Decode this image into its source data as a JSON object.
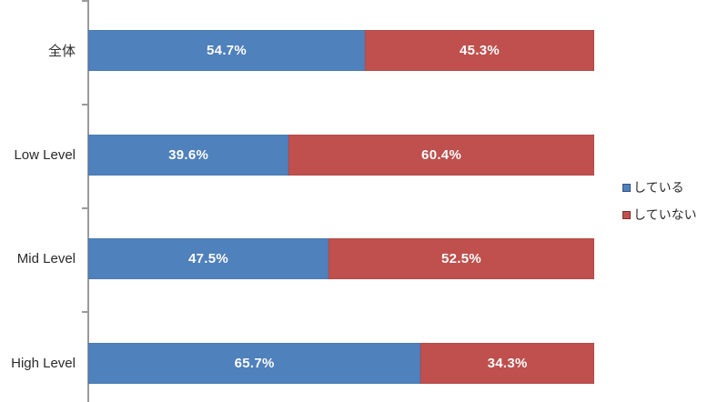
{
  "chart_data": {
    "type": "bar",
    "orientation": "horizontal",
    "stacked": true,
    "unit": "%",
    "title": "",
    "xlabel": "",
    "ylabel": "",
    "xlim": [
      0,
      100
    ],
    "grid": false,
    "legend_position": "right",
    "data_labels": true,
    "axis_color": "#9a9a9a",
    "categories": [
      "全体",
      "Low Level",
      "Mid Level",
      "High Level"
    ],
    "series": [
      {
        "name": "している",
        "color": "#4F81BD",
        "values": [
          54.7,
          39.6,
          47.5,
          65.7
        ]
      },
      {
        "name": "していない",
        "color": "#C0504D",
        "values": [
          45.3,
          60.4,
          52.5,
          34.3
        ]
      }
    ]
  }
}
